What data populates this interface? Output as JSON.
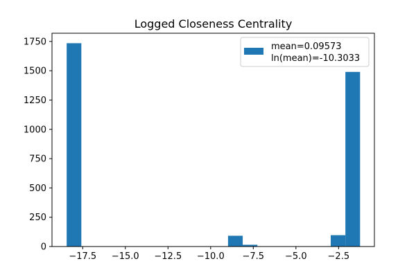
{
  "chart_data": {
    "type": "bar",
    "title": "Logged Closeness Centrality",
    "xlabel": "",
    "ylabel": "",
    "xlim": [
      -19.3,
      -0.4
    ],
    "ylim": [
      0,
      1820
    ],
    "xticks": [
      -17.5,
      -15.0,
      -12.5,
      -10.0,
      -7.5,
      -5.0,
      -2.5
    ],
    "xtick_labels": [
      "−17.5",
      "−15.0",
      "−12.5",
      "−10.0",
      "−7.5",
      "−5.0",
      "−2.5"
    ],
    "yticks": [
      0,
      250,
      500,
      750,
      1000,
      1250,
      1500,
      1750
    ],
    "ytick_labels": [
      "0",
      "250",
      "500",
      "750",
      "1000",
      "1250",
      "1500",
      "1750"
    ],
    "bin_edges": [
      -18.44,
      -17.58,
      -16.72,
      -15.86,
      -15.0,
      -14.14,
      -13.28,
      -12.42,
      -11.56,
      -10.7,
      -9.84,
      -8.98,
      -8.12,
      -7.26,
      -6.4,
      -5.54,
      -4.68,
      -3.82,
      -2.96,
      -2.1,
      -1.24
    ],
    "counts": [
      1735,
      0,
      0,
      0,
      0,
      0,
      0,
      0,
      0,
      0,
      0,
      92,
      15,
      0,
      0,
      0,
      0,
      0,
      97,
      1490
    ],
    "color": "#1f77b4",
    "legend": {
      "position": "top-right",
      "entries": [
        "mean=0.09573",
        "ln(mean)=-10.3033"
      ]
    },
    "grid": false
  }
}
